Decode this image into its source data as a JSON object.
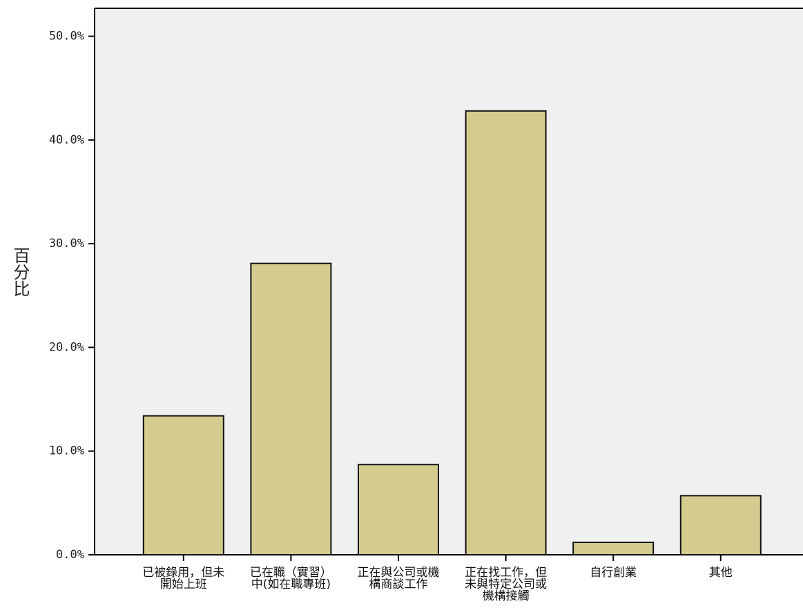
{
  "chart_data": {
    "type": "bar",
    "y_label": "百分比",
    "categories": [
      "已被錄用，但未\n開始上班",
      "已在職（實習）\n中(如在職專班)",
      "正在與公司或機\n構商談工作",
      "正在找工作，但\n未與特定公司或\n機構接觸",
      "自行創業",
      "其他"
    ],
    "values": [
      13.4,
      28.1,
      8.7,
      42.8,
      1.2,
      5.7
    ],
    "color": "#d4cc8e",
    "ylim": [
      0,
      52.7
    ],
    "yticks": [
      {
        "value": 0,
        "label": "0.0%"
      },
      {
        "value": 10,
        "label": "10.0%"
      },
      {
        "value": 20,
        "label": "20.0%"
      },
      {
        "value": 30,
        "label": "30.0%"
      },
      {
        "value": 40,
        "label": "40.0%"
      },
      {
        "value": 50,
        "label": "50.0%"
      }
    ]
  }
}
